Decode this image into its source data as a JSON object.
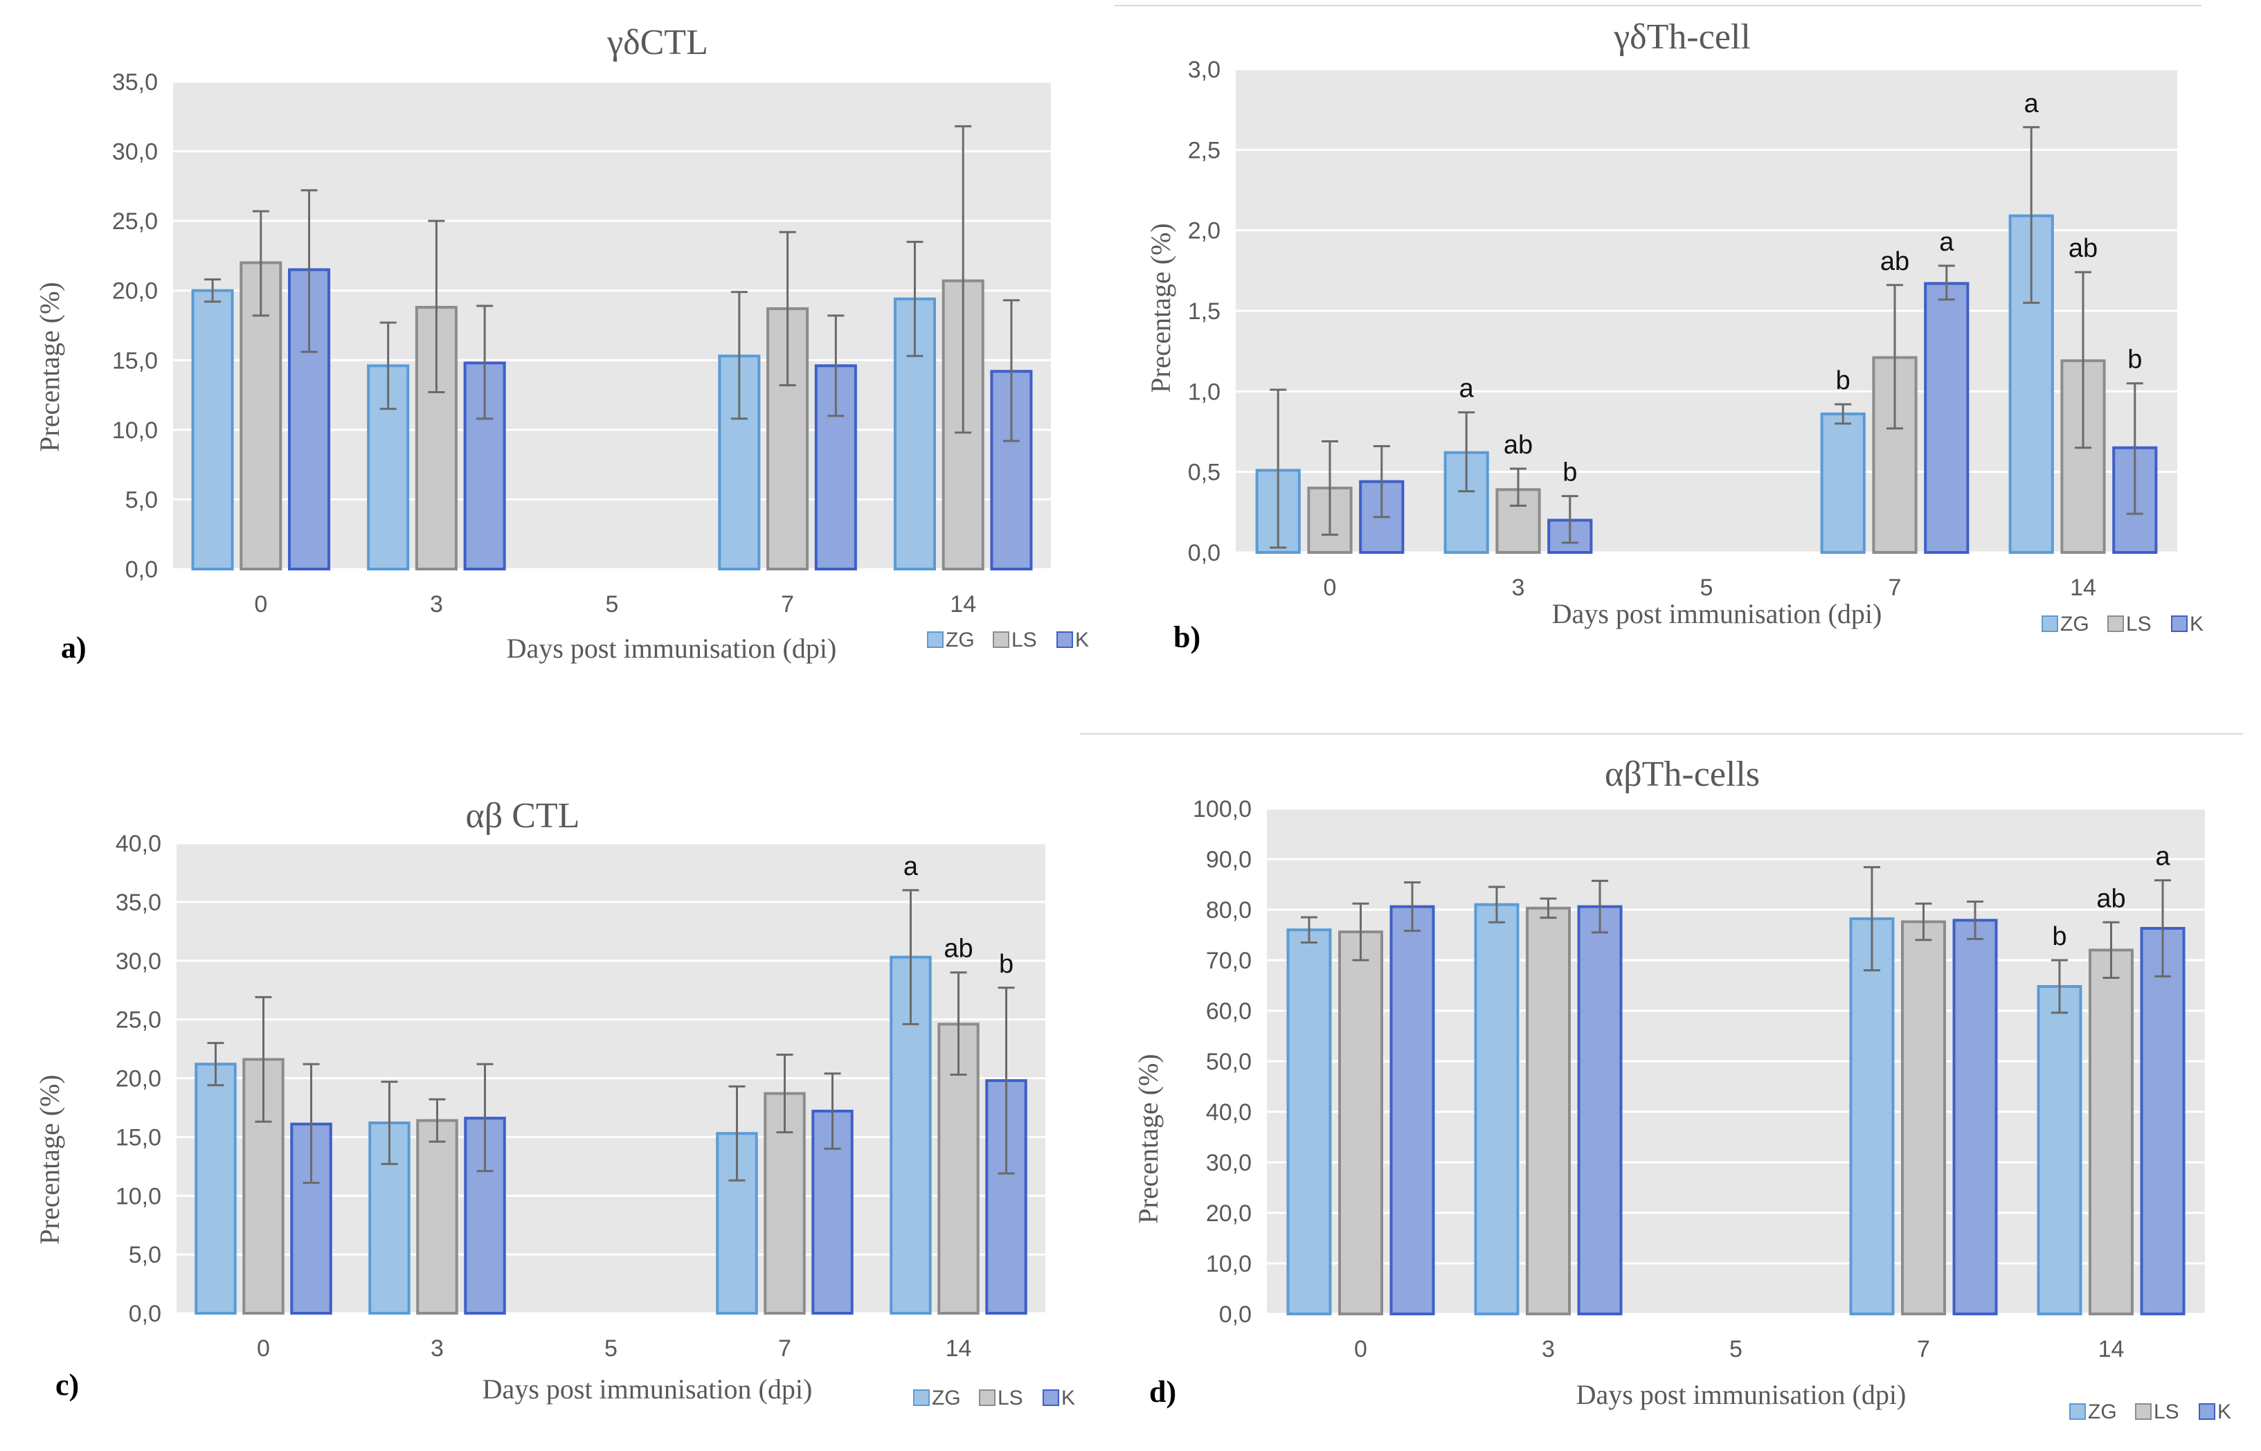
{
  "colors": {
    "plot_bg": "#e7e7e7",
    "grid": "#ffffff",
    "error_bar": "#6a6a6a",
    "ZG_fill": "#9dc3e6",
    "ZG_stroke": "#5b9bd5",
    "LS_fill": "#c9c9c9",
    "LS_stroke": "#8c8c8c",
    "K_fill": "#8fa6de",
    "K_stroke": "#3f5fc8"
  },
  "chart_data": [
    {
      "panel": "a)",
      "type": "bar",
      "title": "γδCTL",
      "xlabel": "Days post immunisation (dpi)",
      "ylabel": "Precentage (%)",
      "categories": [
        "0",
        "3",
        "5",
        "7",
        "14"
      ],
      "ylim": [
        0,
        35
      ],
      "yticks": [
        "0,0",
        "5,0",
        "10,0",
        "15,0",
        "20,0",
        "25,0",
        "30,0",
        "35,0"
      ],
      "legend": [
        "ZG",
        "LS",
        "K"
      ],
      "series": [
        {
          "name": "ZG",
          "values": [
            20.0,
            14.6,
            null,
            15.3,
            19.4
          ],
          "err_low": [
            19.2,
            11.5,
            null,
            10.8,
            15.3
          ],
          "err_high": [
            20.8,
            17.7,
            null,
            19.9,
            23.5
          ],
          "labels": [
            "",
            "",
            "",
            "",
            ""
          ]
        },
        {
          "name": "LS",
          "values": [
            22.0,
            18.8,
            null,
            18.7,
            20.7
          ],
          "err_low": [
            18.2,
            12.7,
            null,
            13.2,
            9.8
          ],
          "err_high": [
            25.7,
            25.0,
            null,
            24.2,
            31.8
          ],
          "labels": [
            "",
            "",
            "",
            "",
            ""
          ]
        },
        {
          "name": "K",
          "values": [
            21.5,
            14.8,
            null,
            14.6,
            14.2
          ],
          "err_low": [
            15.6,
            10.8,
            null,
            11.0,
            9.2
          ],
          "err_high": [
            27.2,
            18.9,
            null,
            18.2,
            19.3
          ],
          "labels": [
            "",
            "",
            "",
            "",
            ""
          ]
        }
      ]
    },
    {
      "panel": "b)",
      "type": "bar",
      "title": "γδTh-cell",
      "xlabel": "Days post immunisation (dpi)",
      "ylabel": "Precentage (%)",
      "categories": [
        "0",
        "3",
        "5",
        "7",
        "14"
      ],
      "ylim": [
        0,
        3
      ],
      "yticks": [
        "0,0",
        "0,5",
        "1,0",
        "1,5",
        "2,0",
        "2,5",
        "3,0"
      ],
      "legend": [
        "ZG",
        "LS",
        "K"
      ],
      "series": [
        {
          "name": "ZG",
          "values": [
            0.51,
            0.62,
            null,
            0.86,
            2.09
          ],
          "err_low": [
            0.03,
            0.38,
            null,
            0.8,
            1.55
          ],
          "err_high": [
            1.01,
            0.87,
            null,
            0.92,
            2.64
          ],
          "labels": [
            "",
            "a",
            "",
            "b",
            "a"
          ]
        },
        {
          "name": "LS",
          "values": [
            0.4,
            0.39,
            null,
            1.21,
            1.19
          ],
          "err_low": [
            0.11,
            0.29,
            null,
            0.77,
            0.65
          ],
          "err_high": [
            0.69,
            0.52,
            null,
            1.66,
            1.74
          ],
          "labels": [
            "",
            "ab",
            "",
            "ab",
            "ab"
          ]
        },
        {
          "name": "K",
          "values": [
            0.44,
            0.2,
            null,
            1.67,
            0.65
          ],
          "err_low": [
            0.22,
            0.06,
            null,
            1.57,
            0.24
          ],
          "err_high": [
            0.66,
            0.35,
            null,
            1.78,
            1.05
          ],
          "labels": [
            "",
            "b",
            "",
            "a",
            "b"
          ]
        }
      ]
    },
    {
      "panel": "c)",
      "type": "bar",
      "title": "αβ CTL",
      "xlabel": "Days post immunisation (dpi)",
      "ylabel": "Precentage (%)",
      "categories": [
        "0",
        "3",
        "5",
        "7",
        "14"
      ],
      "ylim": [
        0,
        40
      ],
      "yticks": [
        "0,0",
        "5,0",
        "10,0",
        "15,0",
        "20,0",
        "25,0",
        "30,0",
        "35,0",
        "40,0"
      ],
      "legend": [
        "ZG",
        "LS",
        "K"
      ],
      "series": [
        {
          "name": "ZG",
          "values": [
            21.2,
            16.2,
            null,
            15.3,
            30.3
          ],
          "err_low": [
            19.4,
            12.7,
            null,
            11.3,
            24.6
          ],
          "err_high": [
            23.0,
            19.7,
            null,
            19.3,
            36.0
          ],
          "labels": [
            "",
            "",
            "",
            "",
            "a"
          ]
        },
        {
          "name": "LS",
          "values": [
            21.6,
            16.4,
            null,
            18.7,
            24.6
          ],
          "err_low": [
            16.3,
            14.6,
            null,
            15.4,
            20.3
          ],
          "err_high": [
            26.9,
            18.2,
            null,
            22.0,
            29.0
          ],
          "labels": [
            "",
            "",
            "",
            "",
            "ab"
          ]
        },
        {
          "name": "K",
          "values": [
            16.1,
            16.6,
            null,
            17.2,
            19.8
          ],
          "err_low": [
            11.1,
            12.1,
            null,
            14.0,
            11.9
          ],
          "err_high": [
            21.2,
            21.2,
            null,
            20.4,
            27.7
          ],
          "labels": [
            "",
            "",
            "",
            "",
            "b"
          ]
        }
      ]
    },
    {
      "panel": "d)",
      "type": "bar",
      "title": "αβTh-cells",
      "xlabel": "Days post immunisation (dpi)",
      "ylabel": "Precentage (%)",
      "categories": [
        "0",
        "3",
        "5",
        "7",
        "14"
      ],
      "ylim": [
        0,
        100
      ],
      "yticks": [
        "0,0",
        "10,0",
        "20,0",
        "30,0",
        "40,0",
        "50,0",
        "60,0",
        "70,0",
        "80,0",
        "90,0",
        "100,0"
      ],
      "legend": [
        "ZG",
        "LS",
        "K"
      ],
      "series": [
        {
          "name": "ZG",
          "values": [
            76.0,
            81.0,
            null,
            78.2,
            64.8
          ],
          "err_low": [
            73.5,
            77.5,
            null,
            68.0,
            59.6
          ],
          "err_high": [
            78.5,
            84.5,
            null,
            88.4,
            70.0
          ],
          "labels": [
            "",
            "",
            "",
            "",
            "b"
          ]
        },
        {
          "name": "LS",
          "values": [
            75.6,
            80.3,
            null,
            77.6,
            72.0
          ],
          "err_low": [
            70.0,
            78.4,
            null,
            74.0,
            66.5
          ],
          "err_high": [
            81.2,
            82.2,
            null,
            81.2,
            77.5
          ],
          "labels": [
            "",
            "",
            "",
            "",
            "ab"
          ]
        },
        {
          "name": "K",
          "values": [
            80.6,
            80.6,
            null,
            77.9,
            76.3
          ],
          "err_low": [
            75.8,
            75.5,
            null,
            74.2,
            66.8
          ],
          "err_high": [
            85.4,
            85.7,
            null,
            81.6,
            85.8
          ],
          "labels": [
            "",
            "",
            "",
            "",
            "a"
          ]
        }
      ]
    }
  ]
}
